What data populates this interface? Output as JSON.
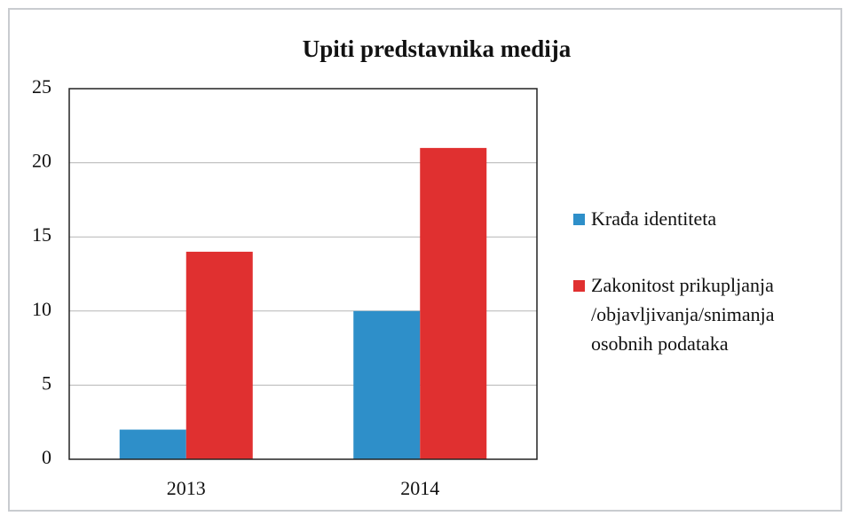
{
  "chart_data": {
    "type": "bar",
    "title": "Upiti predstavnika medija",
    "categories": [
      "2013",
      "2014"
    ],
    "series": [
      {
        "name": "Krađa identiteta",
        "color": "#2e8fc9",
        "values": [
          2,
          10
        ]
      },
      {
        "name": "Zakonitost prikupljanja /objavljivanja/snimanja osobnih podataka",
        "color": "#e03030",
        "values": [
          14,
          21
        ]
      }
    ],
    "ylim": [
      0,
      25
    ],
    "yticks": [
      0,
      5,
      10,
      15,
      20,
      25
    ],
    "grid": true,
    "legend": "right"
  }
}
